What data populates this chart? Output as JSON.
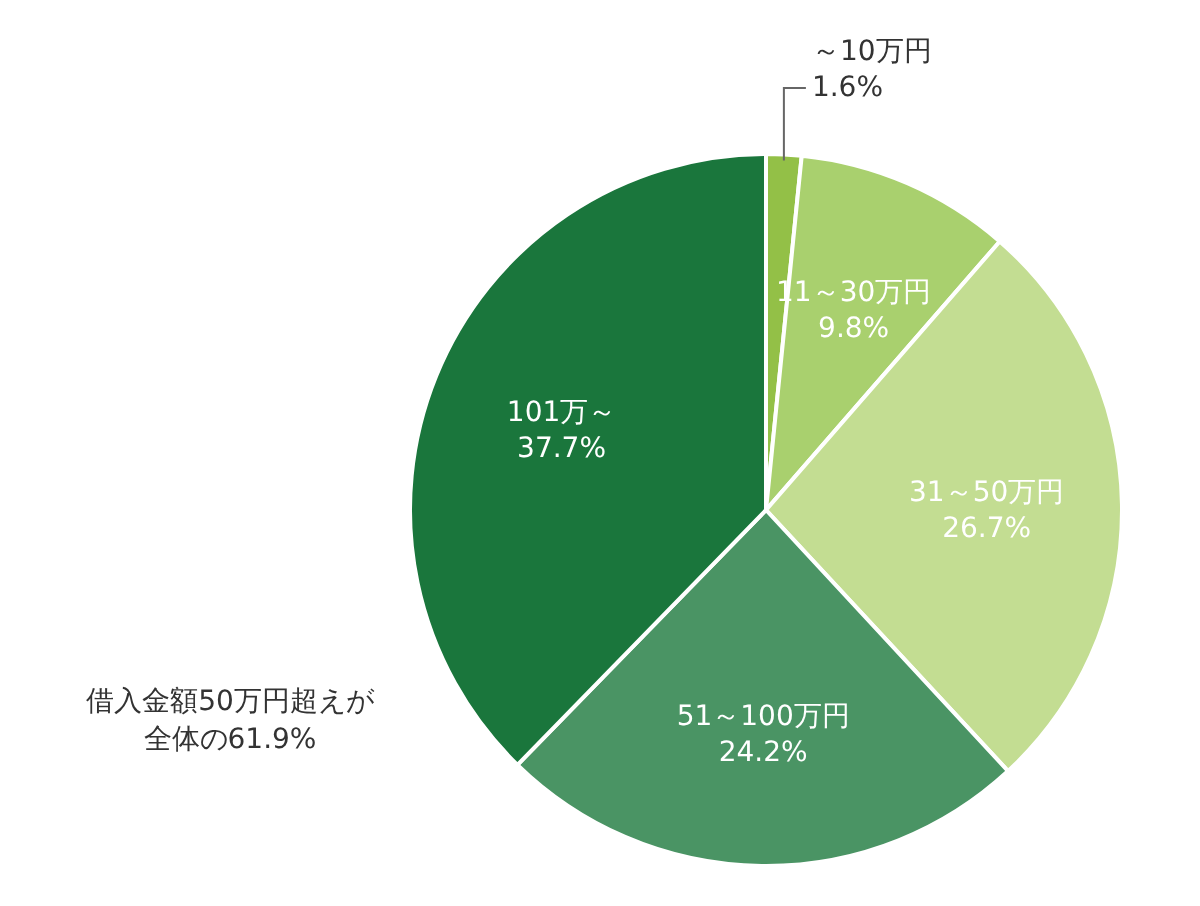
{
  "chart_data": {
    "type": "pie",
    "categories": [
      "～10万円",
      "11～30万円",
      "31～50万円",
      "51～100万円",
      "101万～"
    ],
    "values": [
      1.6,
      9.8,
      26.7,
      24.2,
      37.7
    ],
    "colors": [
      "#93c047",
      "#a9d06e",
      "#c3dd92",
      "#4a9464",
      "#1a763c"
    ],
    "value_labels": [
      "1.6%",
      "9.8%",
      "26.7%",
      "24.2%",
      "37.7%"
    ],
    "legend": false,
    "annotations": [
      "借入金額50万円超えが全体の61.9%"
    ]
  }
}
